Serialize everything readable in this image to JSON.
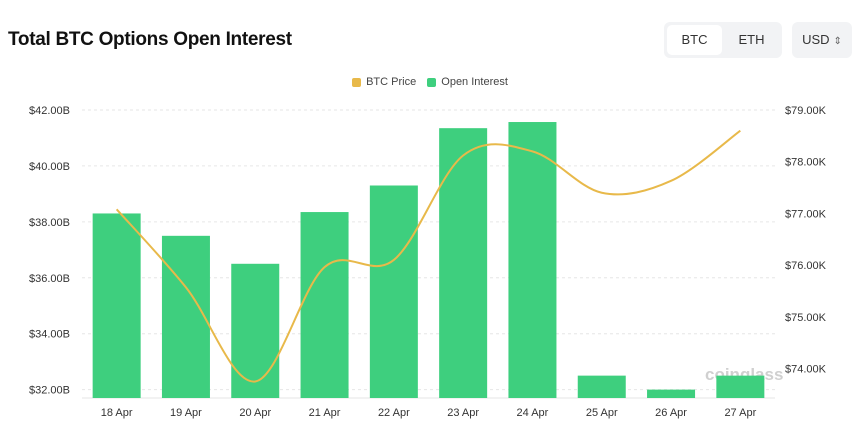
{
  "header": {
    "title": "Total BTC Options Open Interest",
    "coin_options": [
      "BTC",
      "ETH"
    ],
    "coin_selected": "BTC",
    "currency": "USD"
  },
  "watermark": "coinglass",
  "chart_data": {
    "type": "bar",
    "categories": [
      "18 Apr",
      "19 Apr",
      "20 Apr",
      "21 Apr",
      "22 Apr",
      "23 Apr",
      "24 Apr",
      "25 Apr",
      "26 Apr",
      "27 Apr"
    ],
    "series": [
      {
        "name": "Open Interest",
        "type": "bar",
        "axis": "left",
        "color": "#3ecf7e",
        "values": [
          38.3,
          37.5,
          36.5,
          38.35,
          39.3,
          41.35,
          41.57,
          32.5,
          32.0,
          32.5
        ]
      },
      {
        "name": "BTC Price",
        "type": "line",
        "axis": "right",
        "color": "#e8b94a",
        "values": [
          77.08,
          75.57,
          73.75,
          75.96,
          76.1,
          78.12,
          78.2,
          77.4,
          77.63,
          78.6
        ]
      }
    ],
    "left_axis": {
      "ticks": [
        "$32.00B",
        "$34.00B",
        "$36.00B",
        "$38.00B",
        "$40.00B",
        "$42.00B"
      ],
      "tick_values": [
        32,
        34,
        36,
        38,
        40,
        42
      ],
      "range": [
        31.7,
        42
      ]
    },
    "right_axis": {
      "ticks": [
        "$74.00K",
        "$75.00K",
        "$76.00K",
        "$77.00K",
        "$78.00K",
        "$79.00K"
      ],
      "tick_values": [
        74,
        75,
        76,
        77,
        78,
        79
      ],
      "range": [
        73.43,
        79
      ]
    },
    "legend": [
      "BTC Price",
      "Open Interest"
    ],
    "legend_position": "top-center",
    "grid": "horizontal dashed"
  }
}
